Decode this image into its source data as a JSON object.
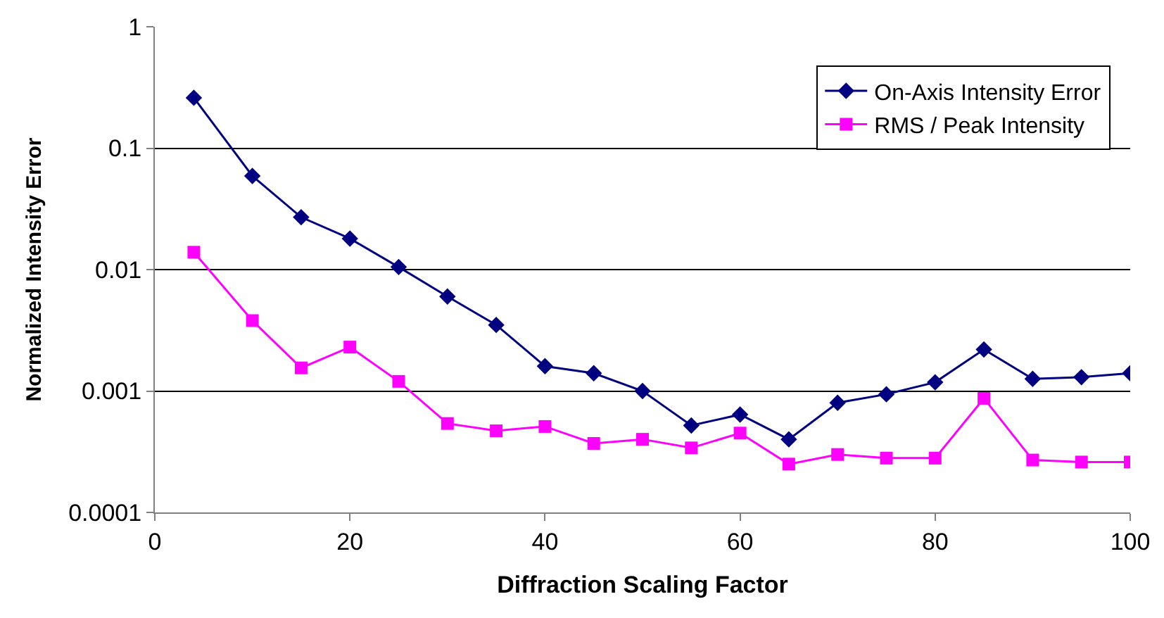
{
  "chart_data": {
    "type": "line",
    "xlabel": "Diffraction Scaling Factor",
    "ylabel": "Normalized Intensity Error",
    "log": "y",
    "grid": "y",
    "legend": "top right",
    "x": [
      4,
      10,
      15,
      20,
      25,
      30,
      35,
      40,
      45,
      50,
      55,
      60,
      65,
      70,
      75,
      80,
      85,
      90,
      95,
      100
    ],
    "xlim": [
      0,
      100
    ],
    "xticks": [
      0,
      20,
      40,
      60,
      80,
      100
    ],
    "ylim": [
      0.0001,
      1
    ],
    "yticks": [
      0.0001,
      0.001,
      0.01,
      0.1,
      1
    ],
    "series": [
      {
        "name": "On-Axis Intensity Error",
        "color": "#000080",
        "marker": "diamond",
        "values": [
          0.26,
          0.059,
          0.027,
          0.018,
          0.0105,
          0.006,
          0.0035,
          0.0016,
          0.0014,
          0.001,
          0.00052,
          0.00064,
          0.0004,
          0.0008,
          0.00094,
          0.00118,
          0.0022,
          0.00126,
          0.0013,
          0.0014
        ]
      },
      {
        "name": "RMS / Peak Intensity",
        "color": "#ff00ff",
        "marker": "square",
        "values": [
          0.0139,
          0.0038,
          0.00155,
          0.0023,
          0.0012,
          0.00054,
          0.00047,
          0.00051,
          0.00037,
          0.0004,
          0.00034,
          0.00045,
          0.00025,
          0.0003,
          0.00028,
          0.00028,
          0.00087,
          0.00027,
          0.00026,
          0.00026
        ]
      }
    ]
  }
}
